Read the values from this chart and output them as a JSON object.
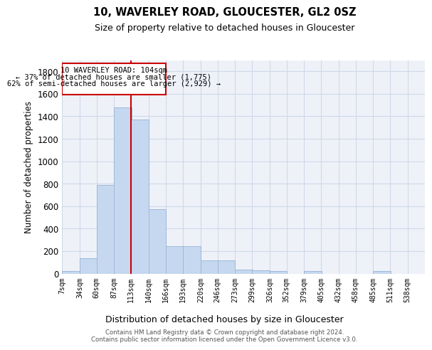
{
  "title1": "10, WAVERLEY ROAD, GLOUCESTER, GL2 0SZ",
  "title2": "Size of property relative to detached houses in Gloucester",
  "xlabel": "Distribution of detached houses by size in Gloucester",
  "ylabel": "Number of detached properties",
  "bar_values": [
    20,
    135,
    790,
    1480,
    1370,
    575,
    245,
    245,
    115,
    115,
    35,
    30,
    20,
    0,
    20,
    0,
    0,
    0,
    20,
    0,
    0
  ],
  "bin_edges": [
    7,
    34,
    60,
    87,
    113,
    140,
    166,
    193,
    220,
    246,
    273,
    299,
    326,
    352,
    379,
    405,
    432,
    458,
    485,
    511,
    538
  ],
  "tick_labels": [
    "7sqm",
    "34sqm",
    "60sqm",
    "87sqm",
    "113sqm",
    "140sqm",
    "166sqm",
    "193sqm",
    "220sqm",
    "246sqm",
    "273sqm",
    "299sqm",
    "326sqm",
    "352sqm",
    "379sqm",
    "405sqm",
    "432sqm",
    "458sqm",
    "485sqm",
    "511sqm",
    "538sqm"
  ],
  "bar_color": "#c5d8f0",
  "bar_edge_color": "#a0b8d8",
  "grid_color": "#d0d8e8",
  "background_color": "#eef2f8",
  "annotation_box_color": "#ffffff",
  "annotation_border_color": "#cc0000",
  "red_line_color": "#cc0000",
  "annotation_line1": "10 WAVERLEY ROAD: 104sqm",
  "annotation_line2": "← 37% of detached houses are smaller (1,775)",
  "annotation_line3": "62% of semi-detached houses are larger (2,929) →",
  "footer1": "Contains HM Land Registry data © Crown copyright and database right 2024.",
  "footer2": "Contains public sector information licensed under the Open Government Licence v3.0.",
  "ylim": [
    0,
    1900
  ],
  "yticks": [
    0,
    200,
    400,
    600,
    800,
    1000,
    1200,
    1400,
    1600,
    1800
  ]
}
